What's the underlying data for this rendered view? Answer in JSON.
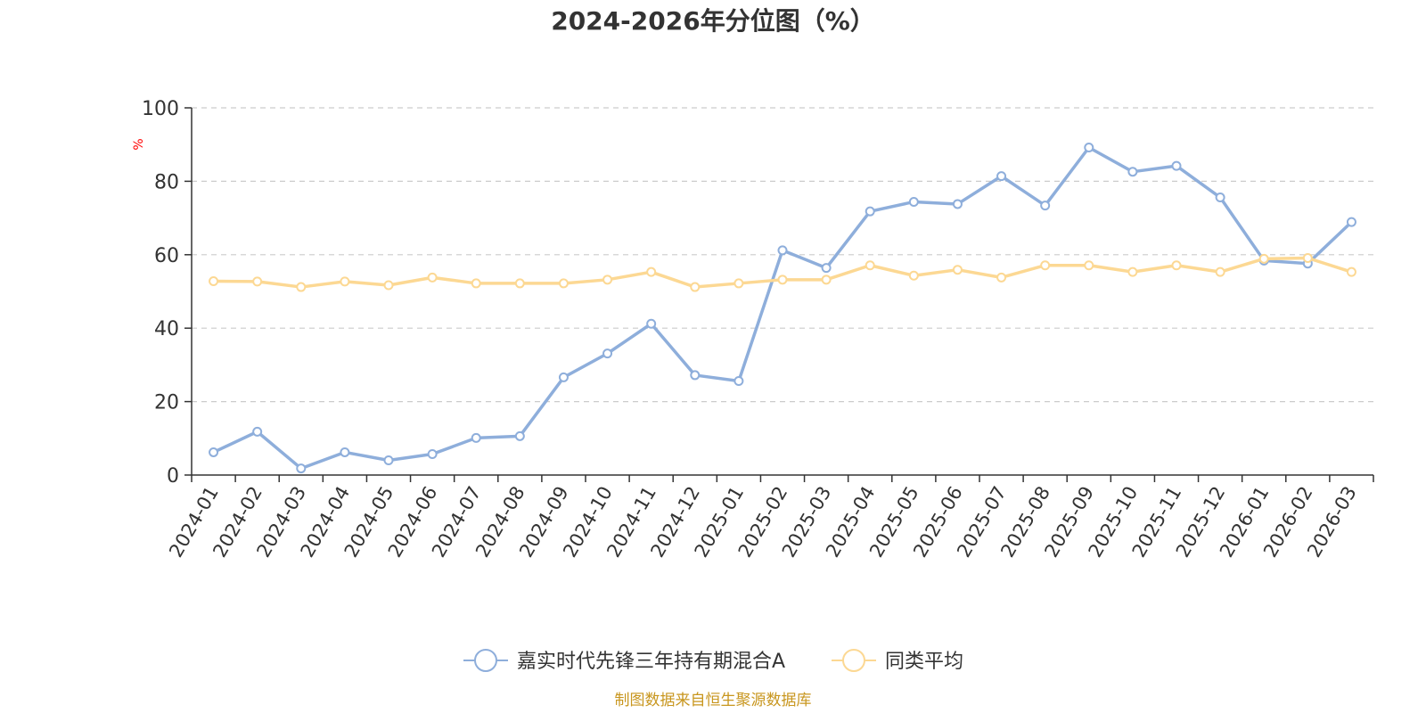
{
  "chart_data": {
    "type": "line",
    "title": "2024-2026年分位图（%）",
    "ylabel": "%",
    "xlabel": "",
    "ylim": [
      0,
      100
    ],
    "yticks": [
      0,
      20,
      40,
      60,
      80,
      100
    ],
    "grid": true,
    "legend_position": "bottom-center",
    "categories": [
      "2024-01",
      "2024-02",
      "2024-03",
      "2024-04",
      "2024-05",
      "2024-06",
      "2024-07",
      "2024-08",
      "2024-09",
      "2024-10",
      "2024-11",
      "2024-12",
      "2025-01",
      "2025-02",
      "2025-03",
      "2025-04",
      "2025-05",
      "2025-06",
      "2025-07",
      "2025-08",
      "2025-09",
      "2025-10",
      "2025-11",
      "2025-12",
      "2026-01",
      "2026-02",
      "2026-03"
    ],
    "series": [
      {
        "name": "嘉实时代先锋三年持有期混合A",
        "color": "#8eaedb",
        "values": [
          6.2,
          11.8,
          1.8,
          6.2,
          4.0,
          5.7,
          10.1,
          10.6,
          26.6,
          33.1,
          41.2,
          27.2,
          25.6,
          61.2,
          56.4,
          71.8,
          74.4,
          73.8,
          81.4,
          73.4,
          89.2,
          82.6,
          84.2,
          75.6,
          58.4,
          57.6,
          68.9
        ]
      },
      {
        "name": "同类平均",
        "color": "#fcd893",
        "values": [
          52.8,
          52.7,
          51.2,
          52.7,
          51.7,
          53.8,
          52.2,
          52.2,
          52.2,
          53.2,
          55.3,
          51.2,
          52.2,
          53.2,
          53.2,
          57.1,
          54.3,
          55.9,
          53.8,
          57.1,
          57.1,
          55.3,
          57.1,
          55.3,
          58.9,
          59.1,
          55.3
        ]
      }
    ]
  },
  "source_text": "制图数据来自恒生聚源数据库"
}
